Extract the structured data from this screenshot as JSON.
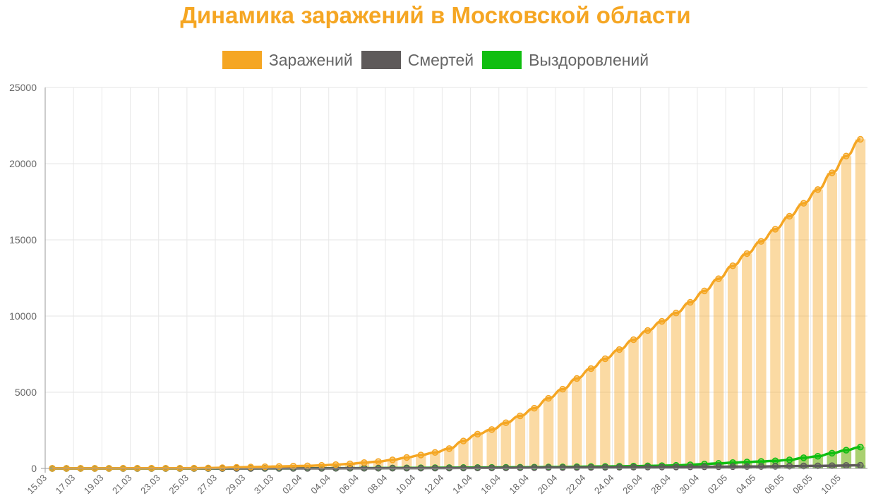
{
  "chart_data": {
    "type": "bar",
    "title": "Динамика заражений в Московской области",
    "title_color": "#f5a623",
    "ylim": [
      0,
      25000
    ],
    "y_ticks": [
      0,
      5000,
      10000,
      15000,
      20000,
      25000
    ],
    "grid": true,
    "legend_position": "top-center",
    "categories": [
      "15.03",
      "16.03",
      "17.03",
      "18.03",
      "19.03",
      "20.03",
      "21.03",
      "22.03",
      "23.03",
      "24.03",
      "25.03",
      "26.03",
      "27.03",
      "28.03",
      "29.03",
      "30.03",
      "31.03",
      "01.04",
      "02.04",
      "03.04",
      "04.04",
      "05.04",
      "06.04",
      "07.04",
      "08.04",
      "09.04",
      "10.04",
      "11.04",
      "12.04",
      "13.04",
      "14.04",
      "15.04",
      "16.04",
      "17.04",
      "18.04",
      "19.04",
      "20.04",
      "21.04",
      "22.04",
      "23.04",
      "24.04",
      "25.04",
      "26.04",
      "27.04",
      "28.04",
      "29.04",
      "30.04",
      "01.05",
      "02.05",
      "03.05",
      "04.05",
      "05.05",
      "06.05",
      "07.05",
      "08.05",
      "09.05",
      "10.05",
      "11.05"
    ],
    "x_tick_labels": [
      "15.03",
      "17.03",
      "19.03",
      "21.03",
      "23.03",
      "25.03",
      "27.03",
      "29.03",
      "31.03",
      "02.04",
      "04.04",
      "06.04",
      "08.04",
      "10.04",
      "12.04",
      "14.04",
      "16.04",
      "18.04",
      "20.04",
      "22.04",
      "24.04",
      "26.04",
      "28.04",
      "30.04",
      "02.05",
      "04.05",
      "06.05",
      "08.05",
      "10.05"
    ],
    "series": [
      {
        "name": "Заражений",
        "color": "#f5a623",
        "values": [
          3,
          4,
          5,
          6,
          7,
          9,
          10,
          11,
          12,
          14,
          20,
          30,
          45,
          70,
          90,
          110,
          130,
          150,
          170,
          200,
          250,
          300,
          380,
          450,
          560,
          720,
          880,
          1050,
          1300,
          1800,
          2250,
          2550,
          3000,
          3450,
          3950,
          4600,
          5200,
          5900,
          6550,
          7200,
          7800,
          8450,
          9050,
          9650,
          10200,
          10900,
          11650,
          12450,
          13300,
          14100,
          14900,
          15700,
          16550,
          17400,
          18300,
          19400,
          20500,
          21600
        ]
      },
      {
        "name": "Смертей",
        "color": "#5e5a5a",
        "values": [
          0,
          0,
          0,
          0,
          0,
          0,
          0,
          0,
          0,
          0,
          1,
          1,
          1,
          2,
          2,
          3,
          3,
          4,
          5,
          6,
          8,
          10,
          12,
          14,
          16,
          18,
          20,
          22,
          25,
          28,
          32,
          36,
          40,
          45,
          50,
          55,
          60,
          65,
          70,
          75,
          80,
          85,
          90,
          95,
          100,
          105,
          110,
          115,
          120,
          125,
          130,
          140,
          150,
          160,
          170,
          180,
          195,
          210
        ]
      },
      {
        "name": "Выздоровлений",
        "color": "#10be10",
        "values": [
          0,
          0,
          0,
          0,
          0,
          0,
          0,
          0,
          0,
          0,
          1,
          1,
          2,
          3,
          4,
          5,
          6,
          8,
          10,
          12,
          15,
          18,
          22,
          26,
          30,
          35,
          40,
          45,
          50,
          55,
          60,
          65,
          70,
          75,
          80,
          90,
          100,
          110,
          120,
          130,
          140,
          150,
          165,
          180,
          200,
          240,
          290,
          330,
          380,
          420,
          460,
          500,
          560,
          700,
          800,
          1000,
          1200,
          1400
        ]
      }
    ]
  }
}
